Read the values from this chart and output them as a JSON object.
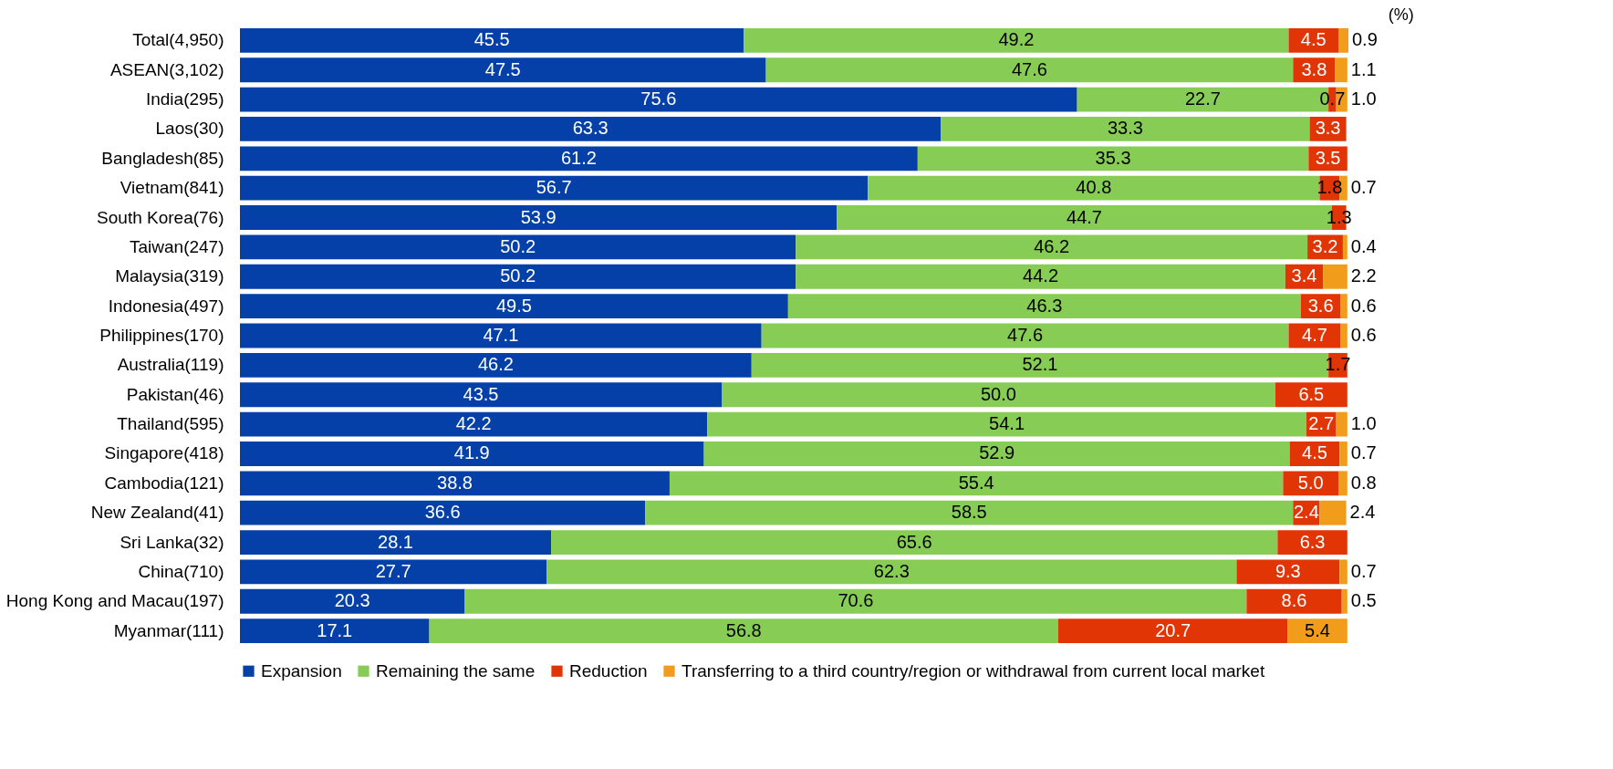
{
  "chart_data": {
    "type": "bar",
    "orientation": "horizontal",
    "stacked": true,
    "legend": "bottom",
    "grid": false,
    "annotations": [
      "(%)"
    ],
    "categories": [
      "Total(4,950)",
      "ASEAN(3,102)",
      "India(295)",
      "Laos(30)",
      "Bangladesh(85)",
      "Vietnam(841)",
      "South Korea(76)",
      "Taiwan(247)",
      "Malaysia(319)",
      "Indonesia(497)",
      "Philippines(170)",
      "Australia(119)",
      "Pakistan(46)",
      "Thailand(595)",
      "Singapore(418)",
      "Cambodia(121)",
      "New Zealand(41)",
      "Sri Lanka(32)",
      "China(710)",
      "Hong Kong and Macau(197)",
      "Myanmar(111)"
    ],
    "series": [
      {
        "name": "Expansion",
        "color": "#0540a8",
        "values": [
          45.5,
          47.5,
          75.6,
          63.3,
          61.2,
          56.7,
          53.9,
          50.2,
          50.2,
          49.5,
          47.1,
          46.2,
          43.5,
          42.2,
          41.9,
          38.8,
          36.6,
          28.1,
          27.7,
          20.3,
          17.1
        ],
        "value_labels": [
          "45.5",
          "47.5",
          "75.6",
          "63.3",
          "61.2",
          "56.7",
          "53.9",
          "50.2",
          "50.2",
          "49.5",
          "47.1",
          "46.2",
          "43.5",
          "42.2",
          "41.9",
          "38.8",
          "36.6",
          "28.1",
          "27.7",
          "20.3",
          "17.1"
        ]
      },
      {
        "name": "Remaining the same",
        "color": "#86cc55",
        "values": [
          49.2,
          47.6,
          22.7,
          33.3,
          35.3,
          40.8,
          44.7,
          46.2,
          44.2,
          46.3,
          47.6,
          52.1,
          50.0,
          54.1,
          52.9,
          55.4,
          58.5,
          65.6,
          62.3,
          70.6,
          56.8
        ],
        "value_labels": [
          "49.2",
          "47.6",
          "22.7",
          "33.3",
          "35.3",
          "40.8",
          "44.7",
          "46.2",
          "44.2",
          "46.3",
          "47.6",
          "52.1",
          "50.0",
          "54.1",
          "52.9",
          "55.4",
          "58.5",
          "65.6",
          "62.3",
          "70.6",
          "56.8"
        ]
      },
      {
        "name": "Reduction",
        "color": "#e23506",
        "values": [
          4.5,
          3.8,
          0.7,
          3.3,
          3.5,
          1.8,
          1.3,
          3.2,
          3.4,
          3.6,
          4.7,
          1.7,
          6.5,
          2.7,
          4.5,
          5.0,
          2.4,
          6.3,
          9.3,
          8.6,
          20.7
        ],
        "value_labels": [
          "4.5",
          "3.8",
          "0.7",
          "3.3",
          "3.5",
          "1.8",
          "1.3",
          "3.2",
          "3.4",
          "3.6",
          "4.7",
          "1.7",
          "6.5",
          "2.7",
          "4.5",
          "5.0",
          "2.4",
          "6.3",
          "9.3",
          "8.6",
          "20.7"
        ]
      },
      {
        "name": "Transferring to a third country/region or withdrawal from current local market",
        "color": "#f29c1b",
        "values": [
          0.9,
          1.1,
          1.0,
          null,
          null,
          0.7,
          null,
          0.4,
          2.2,
          0.6,
          0.6,
          null,
          null,
          1.0,
          0.7,
          0.8,
          2.4,
          null,
          0.7,
          0.5,
          5.4
        ],
        "value_labels": [
          "0.9",
          "1.1",
          "1.0",
          null,
          null,
          "0.7",
          null,
          "0.4",
          "2.2",
          "0.6",
          "0.6",
          null,
          null,
          "1.0",
          "0.7",
          "0.8",
          "2.4",
          null,
          "0.7",
          "0.5",
          "5.4"
        ]
      }
    ]
  }
}
